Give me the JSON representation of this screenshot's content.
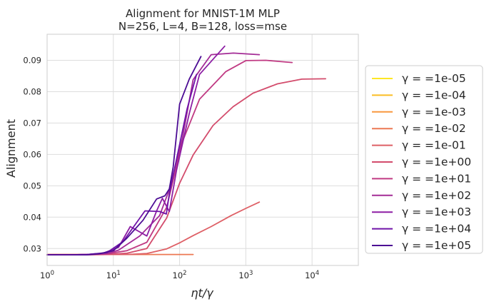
{
  "chart_data": {
    "type": "line",
    "title": "Alignment for MNIST-1M MLP",
    "subtitle": "N=256, L=4, B=128, loss=mse",
    "xlabel": "ηt/γ",
    "ylabel": "Alignment",
    "xscale": "log",
    "xlim": [
      1,
      50000
    ],
    "ylim": [
      0.0246,
      0.0983
    ],
    "xticks": [
      1,
      10,
      100,
      1000,
      10000
    ],
    "xtick_labels": [
      {
        "base": "10",
        "exp": "0"
      },
      {
        "base": "10",
        "exp": "1"
      },
      {
        "base": "10",
        "exp": "2"
      },
      {
        "base": "10",
        "exp": "3"
      },
      {
        "base": "10",
        "exp": "4"
      }
    ],
    "yticks": [
      0.03,
      0.04,
      0.05,
      0.06,
      0.07,
      0.08,
      0.09
    ],
    "ytick_labels": [
      "0.03",
      "0.04",
      "0.05",
      "0.06",
      "0.07",
      "0.08",
      "0.09"
    ],
    "grid": true,
    "legend_position": "right-outside",
    "series": [
      {
        "name": "γ = =1e-05",
        "color": "#fde725",
        "x": [],
        "y": []
      },
      {
        "name": "γ = =1e-04",
        "color": "#fbbd23",
        "x": [],
        "y": []
      },
      {
        "name": "γ = =1e-03",
        "color": "#f9983e",
        "x": [],
        "y": []
      },
      {
        "name": "γ = =1e-02",
        "color": "#ec7853",
        "x": [
          1,
          2,
          4,
          8,
          16,
          32,
          64,
          128,
          160
        ],
        "y": [
          0.0281,
          0.0281,
          0.0281,
          0.0281,
          0.0281,
          0.0281,
          0.0281,
          0.0281,
          0.0281
        ]
      },
      {
        "name": "γ = =1e-01",
        "color": "#de5f65",
        "x": [
          1,
          2,
          4,
          8,
          16,
          32,
          64,
          100,
          160,
          300,
          600,
          1000,
          1600
        ],
        "y": [
          0.0281,
          0.0281,
          0.0281,
          0.0281,
          0.0281,
          0.0284,
          0.0299,
          0.0318,
          0.0341,
          0.037,
          0.0405,
          0.0428,
          0.0448
        ]
      },
      {
        "name": "γ = =1e+00",
        "color": "#d34c6c",
        "x": [
          1,
          2,
          4,
          8,
          16,
          32,
          64,
          100,
          160,
          320,
          640,
          1280,
          3000,
          7000,
          16000
        ],
        "y": [
          0.028,
          0.028,
          0.028,
          0.0281,
          0.0285,
          0.03,
          0.0398,
          0.0508,
          0.0598,
          0.0692,
          0.0752,
          0.0795,
          0.0825,
          0.084,
          0.0841
        ]
      },
      {
        "name": "γ = =1e+01",
        "color": "#c03a83",
        "x": [
          1,
          2,
          4,
          8,
          16,
          32,
          64,
          110,
          200,
          500,
          1000,
          2000,
          5000
        ],
        "y": [
          0.028,
          0.028,
          0.0281,
          0.0283,
          0.0293,
          0.032,
          0.0432,
          0.064,
          0.0776,
          0.0864,
          0.0899,
          0.09,
          0.0893
        ]
      },
      {
        "name": "γ = =1e+02",
        "color": "#a42c96",
        "x": [
          1,
          2,
          4,
          8,
          12,
          25,
          50,
          70,
          110,
          160,
          300,
          650,
          1600
        ],
        "y": [
          0.028,
          0.028,
          0.0281,
          0.0284,
          0.0295,
          0.034,
          0.0405,
          0.0488,
          0.065,
          0.0838,
          0.0918,
          0.0923,
          0.0918
        ]
      },
      {
        "name": "γ = =1e+03",
        "color": "#8d1ea4",
        "x": [
          1,
          2,
          4,
          7,
          12,
          18,
          32,
          45,
          55,
          70,
          90,
          140,
          200,
          480
        ],
        "y": [
          0.028,
          0.028,
          0.0281,
          0.0285,
          0.0304,
          0.037,
          0.034,
          0.042,
          0.046,
          0.0418,
          0.055,
          0.073,
          0.0855,
          0.0945
        ]
      },
      {
        "name": "γ = =1e+04",
        "color": "#6f13a8",
        "x": [
          1,
          2,
          4,
          8,
          14,
          30,
          50,
          63,
          70,
          85,
          130,
          180
        ],
        "y": [
          0.028,
          0.028,
          0.0281,
          0.0287,
          0.0322,
          0.042,
          0.0418,
          0.041,
          0.0475,
          0.056,
          0.0745,
          0.0855
        ]
      },
      {
        "name": "γ = =1e+05",
        "color": "#4c0c94",
        "x": [
          1,
          2,
          4,
          6,
          10,
          16,
          28,
          45,
          60,
          70,
          80,
          100,
          140,
          210
        ],
        "y": [
          0.028,
          0.028,
          0.028,
          0.0283,
          0.0293,
          0.0333,
          0.039,
          0.0458,
          0.0468,
          0.049,
          0.056,
          0.076,
          0.084,
          0.0912
        ]
      }
    ]
  }
}
